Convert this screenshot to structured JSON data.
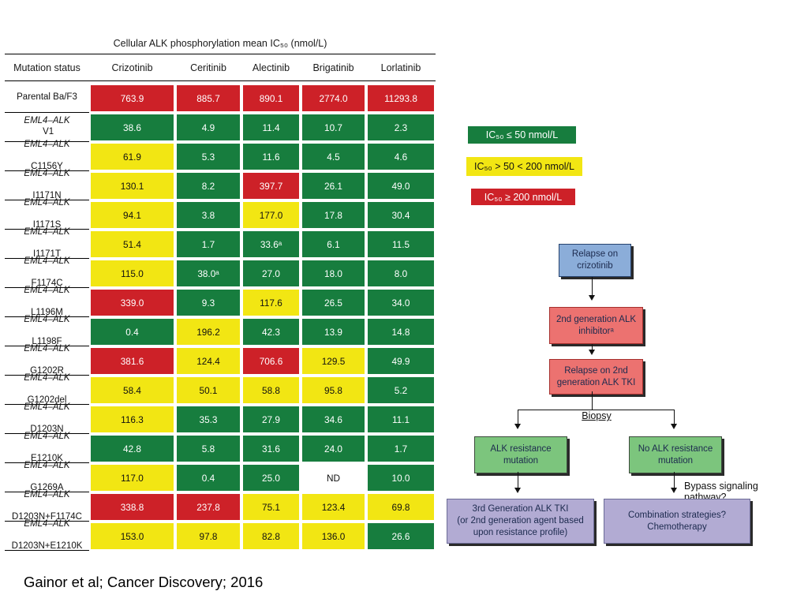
{
  "caption": "Gainor et al; Cancer Discovery; 2016",
  "colors": {
    "green": "#177d3e",
    "yellow": "#f2e613",
    "red": "#cd2128",
    "blue_box": "#8badd9",
    "pink_box": "#ec7270",
    "green_box": "#7cc57d",
    "purple_box": "#b2abd3"
  },
  "chart_data": {
    "type": "heatmap",
    "title": "Cellular ALK phosphorylation mean IC₅₀ (nmol/L)",
    "columns": [
      "Mutation status",
      "Crizotinib",
      "Ceritinib",
      "Alectinib",
      "Brigatinib",
      "Lorlatinib"
    ],
    "color_rules": {
      "green": "IC50 <= 50 nmol/L",
      "yellow": "IC50 > 50 and < 200 nmol/L",
      "red": "IC50 >= 200 nmol/L",
      "white": "ND (not determined)"
    },
    "rows": [
      {
        "gene": "",
        "mutation": "Parental Ba/F3",
        "single_line": true,
        "values": [
          "763.9",
          "885.7",
          "890.1",
          "2774.0",
          "11293.8"
        ]
      },
      {
        "gene": "EML4–ALK",
        "mutation": "V1",
        "single_line": true,
        "values": [
          "38.6",
          "4.9",
          "11.4",
          "10.7",
          "2.3"
        ]
      },
      {
        "gene": "EML4–ALK",
        "mutation": "C1156Y",
        "values": [
          "61.9",
          "5.3",
          "11.6",
          "4.5",
          "4.6"
        ]
      },
      {
        "gene": "EML4–ALK",
        "mutation": "I1171N",
        "values": [
          "130.1",
          "8.2",
          "397.7",
          "26.1",
          "49.0"
        ]
      },
      {
        "gene": "EML4–ALK",
        "mutation": "I1171S",
        "values": [
          "94.1",
          "3.8",
          "177.0",
          "17.8",
          "30.4"
        ]
      },
      {
        "gene": "EML4–ALK",
        "mutation": "I1171T",
        "values": [
          "51.4",
          "1.7",
          "33.6ᵃ",
          "6.1",
          "11.5"
        ]
      },
      {
        "gene": "EML4–ALK",
        "mutation": "F1174C",
        "values": [
          "115.0",
          "38.0ᵃ",
          "27.0",
          "18.0",
          "8.0"
        ]
      },
      {
        "gene": "EML4–ALK",
        "mutation": "L1196M",
        "values": [
          "339.0",
          "9.3",
          "117.6",
          "26.5",
          "34.0"
        ]
      },
      {
        "gene": "EML4–ALK",
        "mutation": "L1198F",
        "values": [
          "0.4",
          "196.2",
          "42.3",
          "13.9",
          "14.8"
        ]
      },
      {
        "gene": "EML4–ALK",
        "mutation": "G1202R",
        "values": [
          "381.6",
          "124.4",
          "706.6",
          "129.5",
          "49.9"
        ]
      },
      {
        "gene": "EML4–ALK",
        "mutation": "G1202del",
        "values": [
          "58.4",
          "50.1",
          "58.8",
          "95.8",
          "5.2"
        ]
      },
      {
        "gene": "EML4–ALK",
        "mutation": "D1203N",
        "values": [
          "116.3",
          "35.3",
          "27.9",
          "34.6",
          "11.1"
        ]
      },
      {
        "gene": "EML4–ALK",
        "mutation": "E1210K",
        "values": [
          "42.8",
          "5.8",
          "31.6",
          "24.0",
          "1.7"
        ]
      },
      {
        "gene": "EML4–ALK",
        "mutation": "G1269A",
        "values": [
          "117.0",
          "0.4",
          "25.0",
          "ND",
          "10.0"
        ]
      },
      {
        "gene": "EML4–ALK",
        "mutation": "D1203N+F1174C",
        "values": [
          "338.8",
          "237.8",
          "75.1",
          "123.4",
          "69.8"
        ]
      },
      {
        "gene": "EML4–ALK",
        "mutation": "D1203N+E1210K",
        "values": [
          "153.0",
          "97.8",
          "82.8",
          "136.0",
          "26.6"
        ]
      }
    ]
  },
  "table": {
    "title": "Cellular ALK phosphorylation mean IC₅₀ (nmol/L)"
  },
  "legend": {
    "green": "IC₅₀ ≤ 50 nmol/L",
    "yellow": "IC₅₀ > 50 < 200 nmol/L",
    "red": "IC₅₀ ≥ 200 nmol/L"
  },
  "flowchart": {
    "relapse_crizotinib": "Relapse on\ncrizotinib",
    "second_gen_inhibitor": "2nd generation ALK\ninhibitorᵃ",
    "relapse_2nd_gen": "Relapse on 2nd\ngeneration ALK TKI",
    "biopsy": "Biopsy",
    "alk_resistance": "ALK resistance\nmutation",
    "no_alk_resistance": "No ALK resistance\nmutation",
    "bypass": "Bypass signaling pathway?",
    "third_gen": "3rd Generation ALK TKI\n(or 2nd generation agent based\nupon resistance profile)",
    "combination": "Combination strategies?\nChemotherapy"
  }
}
